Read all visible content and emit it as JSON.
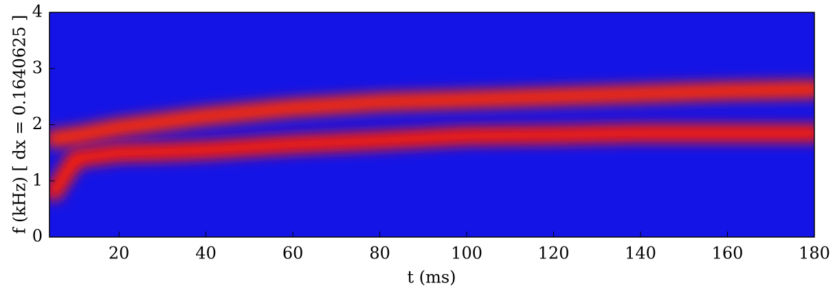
{
  "chart_data": {
    "type": "spectrogram",
    "xlabel": "t (ms)",
    "ylabel": "f (kHz)   [ dx = 0.1640625 ]",
    "background": "#1414e6",
    "x": [
      5,
      10,
      20,
      30,
      40,
      60,
      80,
      100,
      120,
      140,
      160,
      180
    ],
    "series": [
      {
        "color": "#ff2a00",
        "values": [
          1.75,
          1.8,
          1.95,
          2.05,
          2.15,
          2.3,
          2.4,
          2.45,
          2.5,
          2.55,
          2.6,
          2.63
        ]
      },
      {
        "color": "#ff1a00",
        "values": [
          0.8,
          1.4,
          1.5,
          1.52,
          1.55,
          1.65,
          1.72,
          1.8,
          1.82,
          1.85,
          1.85,
          1.85
        ]
      }
    ],
    "xlim": [
      4,
      180
    ],
    "xticks": [
      20,
      40,
      60,
      80,
      100,
      120,
      140,
      160,
      180
    ],
    "ylim": [
      0,
      4
    ],
    "yticks": [
      0,
      1,
      2,
      3,
      4
    ]
  }
}
